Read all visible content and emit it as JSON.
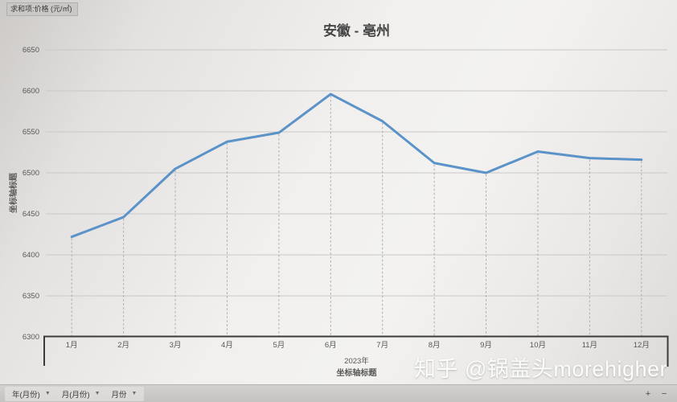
{
  "header": {
    "value_field_label": "求和项:价格 (元/㎡)"
  },
  "chart_data": {
    "type": "line",
    "title": "安徽 - 亳州",
    "categories": [
      "1月",
      "2月",
      "3月",
      "4月",
      "5月",
      "6月",
      "7月",
      "8月",
      "9月",
      "10月",
      "11月",
      "12月"
    ],
    "series": [
      {
        "name": "求和项:价格",
        "values": [
          6422,
          6446,
          6505,
          6538,
          6549,
          6596,
          6563,
          6512,
          6500,
          6526,
          6518,
          6516
        ]
      }
    ],
    "ylim": [
      6300,
      6650
    ],
    "ytick_step": 50,
    "yticks": [
      6300,
      6350,
      6400,
      6450,
      6500,
      6550,
      6600,
      6650
    ],
    "xlabel_group": "2023年",
    "xlabel": "坐标轴标题",
    "ylabel": "坐标轴标题",
    "grid": true,
    "drop_lines": "dashed",
    "legend": "none",
    "line_color": "#5b93c9",
    "gridline_color": "#c9c8c6",
    "axis_box_color": "#3b3b3b",
    "tick_text_color": "#595959"
  },
  "footer": {
    "buttons": [
      {
        "label": "年(月份)"
      },
      {
        "label": "月(月份)"
      },
      {
        "label": "月份"
      }
    ],
    "zoom_in": "+",
    "zoom_out": "−"
  },
  "watermark": "知乎 @锅盖头morehigher"
}
